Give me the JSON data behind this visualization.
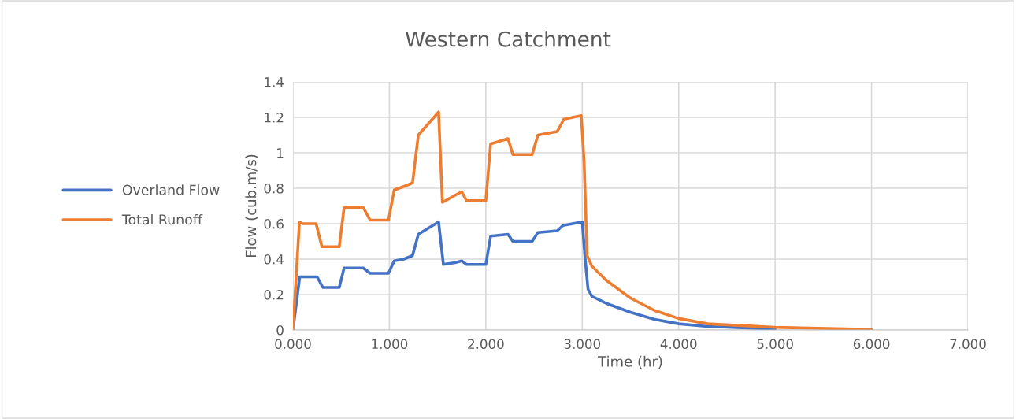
{
  "chart_data": {
    "type": "line",
    "title": "Western Catchment",
    "xlabel": "Time (hr)",
    "ylabel": "Flow (cub.m/s)",
    "xlim": [
      0,
      7
    ],
    "xticks": [
      {
        "value": 0,
        "label": "0.000"
      },
      {
        "value": 1,
        "label": "1.000"
      },
      {
        "value": 2,
        "label": "2.000"
      },
      {
        "value": 3,
        "label": "3.000"
      },
      {
        "value": 4,
        "label": "4.000"
      },
      {
        "value": 5,
        "label": "5.000"
      },
      {
        "value": 6,
        "label": "6.000"
      },
      {
        "value": 7,
        "label": "7.000"
      }
    ],
    "ylim": [
      0,
      1.4
    ],
    "yticks": [
      0,
      0.2,
      0.4,
      0.6,
      0.8,
      1,
      1.2,
      1.4
    ],
    "grid": true,
    "legend": "left",
    "marker": "none",
    "line_style": "solid",
    "series": [
      {
        "name": "Overland Flow",
        "color": "#4472c4",
        "x": [
          0,
          0.07,
          0.25,
          0.31,
          0.48,
          0.53,
          0.73,
          0.8,
          0.99,
          1.05,
          1.15,
          1.24,
          1.3,
          1.51,
          1.56,
          1.68,
          1.75,
          1.8,
          2.0,
          2.05,
          2.23,
          2.28,
          2.48,
          2.54,
          2.74,
          2.8,
          3.0,
          3.03,
          3.06,
          3.1,
          3.25,
          3.5,
          3.75,
          4.0,
          4.3,
          5.0
        ],
        "values": [
          0,
          0.3,
          0.3,
          0.24,
          0.24,
          0.35,
          0.35,
          0.32,
          0.32,
          0.39,
          0.4,
          0.42,
          0.54,
          0.61,
          0.37,
          0.38,
          0.39,
          0.37,
          0.37,
          0.53,
          0.54,
          0.5,
          0.5,
          0.55,
          0.56,
          0.59,
          0.61,
          0.4,
          0.23,
          0.19,
          0.15,
          0.1,
          0.06,
          0.035,
          0.02,
          0.005
        ]
      },
      {
        "name": "Total Runoff",
        "color": "#ed7d31",
        "x": [
          0,
          0.067,
          0.1,
          0.24,
          0.3,
          0.48,
          0.53,
          0.73,
          0.8,
          0.99,
          1.05,
          1.15,
          1.24,
          1.3,
          1.51,
          1.55,
          1.68,
          1.75,
          1.8,
          2.0,
          2.05,
          2.23,
          2.28,
          2.48,
          2.54,
          2.74,
          2.81,
          2.99,
          3.02,
          3.05,
          3.1,
          3.25,
          3.5,
          3.75,
          4.0,
          4.3,
          5.0,
          6.0
        ],
        "values": [
          0,
          0.61,
          0.6,
          0.6,
          0.47,
          0.47,
          0.69,
          0.69,
          0.62,
          0.62,
          0.79,
          0.81,
          0.83,
          1.1,
          1.23,
          0.72,
          0.76,
          0.78,
          0.73,
          0.73,
          1.05,
          1.08,
          0.99,
          0.99,
          1.1,
          1.12,
          1.19,
          1.21,
          0.94,
          0.42,
          0.36,
          0.28,
          0.18,
          0.11,
          0.065,
          0.035,
          0.015,
          0.003
        ]
      }
    ]
  }
}
